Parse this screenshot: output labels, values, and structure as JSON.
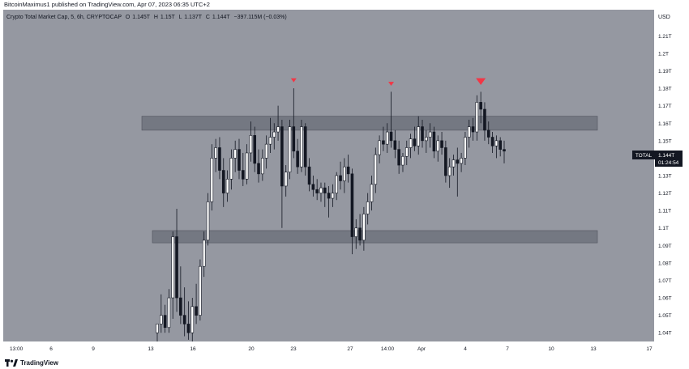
{
  "header": {
    "publisher_line": "BitcoinMaximus1 published on TradingView.com, Apr 07, 2023 06:35 UTC+2"
  },
  "legend": {
    "symbol": "Crypto Total Market Cap, 5, 6h, CRYPTOCAP",
    "o_label": "O",
    "o_value": "1.145T",
    "h_label": "H",
    "h_value": "1.15T",
    "l_label": "L",
    "l_value": "1.137T",
    "c_label": "C",
    "c_value": "1.144T",
    "change": "−397.115M (−0.03%)"
  },
  "price_axis": {
    "currency": "USD",
    "ticks": [
      "1.21T",
      "1.2T",
      "1.19T",
      "1.18T",
      "1.17T",
      "1.16T",
      "1.15T",
      "1.14T",
      "1.13T",
      "1.12T",
      "1.11T",
      "1.1T",
      "1.09T",
      "1.08T",
      "1.07T",
      "1.06T",
      "1.05T",
      "1.04T"
    ]
  },
  "last_price": {
    "symbol": "TOTAL",
    "price": "1.144T",
    "countdown": "01:24:54"
  },
  "time_axis": {
    "ticks": [
      "13:00",
      "6",
      "9",
      "13",
      "16",
      "20",
      "23",
      "27",
      "14:00",
      "Apr",
      "4",
      "7",
      "10",
      "13",
      "17"
    ]
  },
  "footer": {
    "brand": "TradingView"
  },
  "colors": {
    "plot_bg": "#9598a1",
    "candle_up": "#ffffff",
    "candle_down": "#131722",
    "zone_fill": "#6a6d78",
    "marker": "#f23645"
  },
  "chart_data": {
    "type": "candlestick",
    "symbol": "Crypto Total Market Cap",
    "ylim": [
      1.035,
      1.225
    ],
    "grid": false,
    "zones": [
      {
        "top": 1.164,
        "bottom": 1.156
      },
      {
        "top": 1.0985,
        "bottom": 1.0915
      }
    ],
    "peak_markers": [
      {
        "price": 1.183
      },
      {
        "price": 1.183
      },
      {
        "price": 1.183
      }
    ],
    "candles": [
      {
        "o": 1.04,
        "h": 1.045,
        "l": 1.035,
        "c": 1.045
      },
      {
        "o": 1.045,
        "h": 1.062,
        "l": 1.04,
        "c": 1.05
      },
      {
        "o": 1.05,
        "h": 1.056,
        "l": 1.04,
        "c": 1.043
      },
      {
        "o": 1.043,
        "h": 1.065,
        "l": 1.04,
        "c": 1.06
      },
      {
        "o": 1.06,
        "h": 1.098,
        "l": 1.048,
        "c": 1.095
      },
      {
        "o": 1.095,
        "h": 1.111,
        "l": 1.052,
        "c": 1.06
      },
      {
        "o": 1.06,
        "h": 1.078,
        "l": 1.045,
        "c": 1.05
      },
      {
        "o": 1.05,
        "h": 1.066,
        "l": 1.038,
        "c": 1.045
      },
      {
        "o": 1.045,
        "h": 1.058,
        "l": 1.036,
        "c": 1.04
      },
      {
        "o": 1.04,
        "h": 1.06,
        "l": 1.035,
        "c": 1.055
      },
      {
        "o": 1.055,
        "h": 1.068,
        "l": 1.045,
        "c": 1.05
      },
      {
        "o": 1.05,
        "h": 1.082,
        "l": 1.047,
        "c": 1.078
      },
      {
        "o": 1.078,
        "h": 1.098,
        "l": 1.072,
        "c": 1.093
      },
      {
        "o": 1.093,
        "h": 1.12,
        "l": 1.09,
        "c": 1.115
      },
      {
        "o": 1.115,
        "h": 1.148,
        "l": 1.11,
        "c": 1.14
      },
      {
        "o": 1.14,
        "h": 1.151,
        "l": 1.132,
        "c": 1.146
      },
      {
        "o": 1.146,
        "h": 1.152,
        "l": 1.128,
        "c": 1.133
      },
      {
        "o": 1.133,
        "h": 1.14,
        "l": 1.112,
        "c": 1.12
      },
      {
        "o": 1.12,
        "h": 1.133,
        "l": 1.115,
        "c": 1.128
      },
      {
        "o": 1.128,
        "h": 1.145,
        "l": 1.122,
        "c": 1.14
      },
      {
        "o": 1.14,
        "h": 1.15,
        "l": 1.132,
        "c": 1.145
      },
      {
        "o": 1.145,
        "h": 1.151,
        "l": 1.128,
        "c": 1.133
      },
      {
        "o": 1.133,
        "h": 1.143,
        "l": 1.124,
        "c": 1.128
      },
      {
        "o": 1.128,
        "h": 1.148,
        "l": 1.125,
        "c": 1.143
      },
      {
        "o": 1.143,
        "h": 1.161,
        "l": 1.138,
        "c": 1.153
      },
      {
        "o": 1.153,
        "h": 1.158,
        "l": 1.132,
        "c": 1.137
      },
      {
        "o": 1.137,
        "h": 1.145,
        "l": 1.126,
        "c": 1.131
      },
      {
        "o": 1.131,
        "h": 1.145,
        "l": 1.127,
        "c": 1.14
      },
      {
        "o": 1.14,
        "h": 1.153,
        "l": 1.134,
        "c": 1.148
      },
      {
        "o": 1.148,
        "h": 1.163,
        "l": 1.143,
        "c": 1.152
      },
      {
        "o": 1.152,
        "h": 1.16,
        "l": 1.145,
        "c": 1.155
      },
      {
        "o": 1.155,
        "h": 1.17,
        "l": 1.15,
        "c": 1.158
      },
      {
        "o": 1.158,
        "h": 1.162,
        "l": 1.1,
        "c": 1.124
      },
      {
        "o": 1.124,
        "h": 1.136,
        "l": 1.118,
        "c": 1.132
      },
      {
        "o": 1.132,
        "h": 1.162,
        "l": 1.128,
        "c": 1.158
      },
      {
        "o": 1.158,
        "h": 1.18,
        "l": 1.14,
        "c": 1.144
      },
      {
        "o": 1.144,
        "h": 1.151,
        "l": 1.131,
        "c": 1.135
      },
      {
        "o": 1.135,
        "h": 1.162,
        "l": 1.132,
        "c": 1.158
      },
      {
        "o": 1.158,
        "h": 1.16,
        "l": 1.13,
        "c": 1.135
      },
      {
        "o": 1.135,
        "h": 1.14,
        "l": 1.121,
        "c": 1.125
      },
      {
        "o": 1.125,
        "h": 1.13,
        "l": 1.118,
        "c": 1.122
      },
      {
        "o": 1.122,
        "h": 1.128,
        "l": 1.116,
        "c": 1.12
      },
      {
        "o": 1.12,
        "h": 1.126,
        "l": 1.115,
        "c": 1.123
      },
      {
        "o": 1.123,
        "h": 1.126,
        "l": 1.112,
        "c": 1.12
      },
      {
        "o": 1.12,
        "h": 1.124,
        "l": 1.106,
        "c": 1.117
      },
      {
        "o": 1.117,
        "h": 1.125,
        "l": 1.112,
        "c": 1.12
      },
      {
        "o": 1.12,
        "h": 1.132,
        "l": 1.116,
        "c": 1.13
      },
      {
        "o": 1.13,
        "h": 1.138,
        "l": 1.122,
        "c": 1.127
      },
      {
        "o": 1.127,
        "h": 1.14,
        "l": 1.12,
        "c": 1.135
      },
      {
        "o": 1.135,
        "h": 1.142,
        "l": 1.126,
        "c": 1.131
      },
      {
        "o": 1.131,
        "h": 1.134,
        "l": 1.085,
        "c": 1.095
      },
      {
        "o": 1.095,
        "h": 1.105,
        "l": 1.088,
        "c": 1.1
      },
      {
        "o": 1.1,
        "h": 1.108,
        "l": 1.09,
        "c": 1.093
      },
      {
        "o": 1.093,
        "h": 1.112,
        "l": 1.087,
        "c": 1.108
      },
      {
        "o": 1.108,
        "h": 1.12,
        "l": 1.102,
        "c": 1.115
      },
      {
        "o": 1.115,
        "h": 1.13,
        "l": 1.11,
        "c": 1.125
      },
      {
        "o": 1.125,
        "h": 1.146,
        "l": 1.12,
        "c": 1.142
      },
      {
        "o": 1.142,
        "h": 1.153,
        "l": 1.137,
        "c": 1.15
      },
      {
        "o": 1.15,
        "h": 1.158,
        "l": 1.144,
        "c": 1.148
      },
      {
        "o": 1.148,
        "h": 1.16,
        "l": 1.143,
        "c": 1.155
      },
      {
        "o": 1.155,
        "h": 1.178,
        "l": 1.146,
        "c": 1.15
      },
      {
        "o": 1.15,
        "h": 1.156,
        "l": 1.14,
        "c": 1.145
      },
      {
        "o": 1.145,
        "h": 1.15,
        "l": 1.131,
        "c": 1.136
      },
      {
        "o": 1.136,
        "h": 1.143,
        "l": 1.132,
        "c": 1.141
      },
      {
        "o": 1.141,
        "h": 1.15,
        "l": 1.136,
        "c": 1.146
      },
      {
        "o": 1.146,
        "h": 1.154,
        "l": 1.14,
        "c": 1.151
      },
      {
        "o": 1.151,
        "h": 1.158,
        "l": 1.144,
        "c": 1.147
      },
      {
        "o": 1.147,
        "h": 1.164,
        "l": 1.142,
        "c": 1.158
      },
      {
        "o": 1.158,
        "h": 1.162,
        "l": 1.146,
        "c": 1.15
      },
      {
        "o": 1.15,
        "h": 1.156,
        "l": 1.143,
        "c": 1.152
      },
      {
        "o": 1.152,
        "h": 1.16,
        "l": 1.146,
        "c": 1.155
      },
      {
        "o": 1.155,
        "h": 1.158,
        "l": 1.14,
        "c": 1.144
      },
      {
        "o": 1.144,
        "h": 1.153,
        "l": 1.138,
        "c": 1.15
      },
      {
        "o": 1.15,
        "h": 1.155,
        "l": 1.142,
        "c": 1.146
      },
      {
        "o": 1.146,
        "h": 1.15,
        "l": 1.126,
        "c": 1.13
      },
      {
        "o": 1.13,
        "h": 1.14,
        "l": 1.123,
        "c": 1.135
      },
      {
        "o": 1.135,
        "h": 1.142,
        "l": 1.13,
        "c": 1.139
      },
      {
        "o": 1.139,
        "h": 1.146,
        "l": 1.118,
        "c": 1.137
      },
      {
        "o": 1.137,
        "h": 1.143,
        "l": 1.132,
        "c": 1.14
      },
      {
        "o": 1.14,
        "h": 1.155,
        "l": 1.136,
        "c": 1.152
      },
      {
        "o": 1.152,
        "h": 1.162,
        "l": 1.146,
        "c": 1.158
      },
      {
        "o": 1.158,
        "h": 1.163,
        "l": 1.15,
        "c": 1.155
      },
      {
        "o": 1.155,
        "h": 1.176,
        "l": 1.15,
        "c": 1.172
      },
      {
        "o": 1.172,
        "h": 1.178,
        "l": 1.16,
        "c": 1.168
      },
      {
        "o": 1.168,
        "h": 1.172,
        "l": 1.15,
        "c": 1.156
      },
      {
        "o": 1.156,
        "h": 1.161,
        "l": 1.148,
        "c": 1.152
      },
      {
        "o": 1.152,
        "h": 1.155,
        "l": 1.143,
        "c": 1.147
      },
      {
        "o": 1.147,
        "h": 1.153,
        "l": 1.14,
        "c": 1.15
      },
      {
        "o": 1.15,
        "h": 1.152,
        "l": 1.141,
        "c": 1.145
      },
      {
        "o": 1.145,
        "h": 1.15,
        "l": 1.137,
        "c": 1.144
      }
    ]
  }
}
